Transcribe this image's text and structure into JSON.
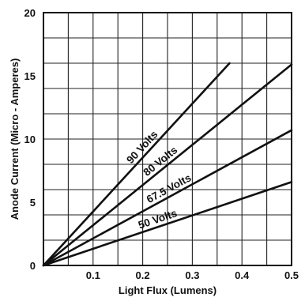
{
  "chart_data": {
    "type": "line",
    "title": "",
    "xlabel": "Light Flux (Lumens)",
    "ylabel": "Anode Current (Micro - Amperes)",
    "xlim": [
      0,
      0.5
    ],
    "ylim": [
      0,
      20
    ],
    "x_ticks": [
      "0.1",
      "0.2",
      "0.3",
      "0.4",
      "0.5"
    ],
    "y_ticks": [
      "0",
      "5",
      "10",
      "15",
      "20"
    ],
    "grid": true,
    "series": [
      {
        "name": "90 Volts",
        "color": "#111111",
        "points": [
          [
            0,
            0
          ],
          [
            0.375,
            16.0
          ]
        ]
      },
      {
        "name": "80 Volts",
        "color": "#111111",
        "points": [
          [
            0,
            0
          ],
          [
            0.5,
            15.9
          ]
        ]
      },
      {
        "name": "67.5 Volts",
        "color": "#111111",
        "points": [
          [
            0,
            0
          ],
          [
            0.5,
            10.7
          ]
        ]
      },
      {
        "name": "50 Volts",
        "color": "#111111",
        "points": [
          [
            0,
            0
          ],
          [
            0.5,
            6.6
          ]
        ]
      }
    ]
  }
}
